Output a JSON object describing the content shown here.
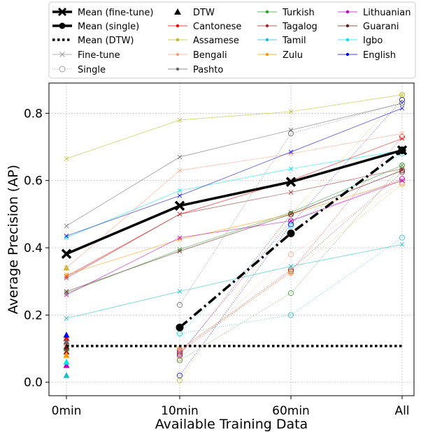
{
  "chart_data": {
    "type": "line",
    "title": "",
    "xlabel": "Available Training Data",
    "ylabel": "Average Precision (AP)",
    "categories": [
      "0min",
      "10min",
      "60min",
      "All"
    ],
    "y_ticks": [
      "0.0",
      "0.2",
      "0.4",
      "0.6",
      "0.8"
    ],
    "ylim": [
      -0.04,
      0.89
    ],
    "grid": true,
    "legend_position": "top, above plot",
    "legend_columns": [
      [
        "Mean (fine-tune)",
        "Mean (single)",
        "Mean (DTW)",
        "Fine-tune",
        "Single"
      ],
      [
        "DTW",
        "Cantonese",
        "Assamese",
        "Bengali",
        "Pashto"
      ],
      [
        "Turkish",
        "Tagalog",
        "Tamil",
        "Zulu"
      ],
      [
        "Lithuanian",
        "Guarani",
        "Igbo",
        "English"
      ]
    ],
    "legend_styles": {
      "Mean (fine-tune)": "thick-line-x-marker",
      "Mean (single)": "thick-dashdot-circle-marker",
      "Mean (DTW)": "dotted-line",
      "Fine-tune": "thin-grey-line-x-marker",
      "Single": "thin-grey-dotted-hollow-circle",
      "DTW": "triangle-marker"
    },
    "mean_series": [
      {
        "name": "Mean (fine-tune)",
        "x": [
          "0min",
          "10min",
          "60min",
          "All"
        ],
        "values": [
          0.382,
          0.525,
          0.596,
          0.69
        ],
        "color": "#000000"
      },
      {
        "name": "Mean (single)",
        "x": [
          "10min",
          "60min",
          "All"
        ],
        "values": [
          0.163,
          0.443,
          0.69
        ],
        "color": "#000000"
      },
      {
        "name": "Mean (DTW)",
        "x": [
          "0min",
          "All"
        ],
        "values": [
          0.108,
          0.108
        ],
        "color": "#000000"
      }
    ],
    "languages": [
      {
        "name": "Cantonese",
        "color": "#ff0000",
        "finetune": [
          0.315,
          0.5,
          0.6,
          0.725
        ],
        "single": [
          0.09,
          0.33,
          0.73
        ],
        "dtw": 0.13
      },
      {
        "name": "Assamese",
        "color": "#bcbd22",
        "finetune": [
          0.665,
          0.78,
          0.805,
          0.855
        ],
        "single": [
          0.005,
          0.5,
          0.855
        ],
        "dtw": 0.34
      },
      {
        "name": "Bengali",
        "color": "#ff9f80",
        "finetune": [
          0.34,
          0.63,
          0.68,
          0.74
        ],
        "single": [
          0.07,
          0.38,
          0.595
        ],
        "dtw": 0.115
      },
      {
        "name": "Pashto",
        "color": "#666666",
        "finetune": [
          0.465,
          0.67,
          0.75,
          0.83
        ],
        "single": [
          0.23,
          0.74,
          0.83
        ],
        "dtw": 0.12
      },
      {
        "name": "Turkish",
        "color": "#2ca02c",
        "finetune": [
          0.265,
          0.395,
          0.505,
          0.645
        ],
        "single": [
          0.065,
          0.265,
          0.645
        ],
        "dtw": 0.1
      },
      {
        "name": "Tagalog",
        "color": "#a52a2a",
        "finetune": [
          0.31,
          0.5,
          0.565,
          0.635
        ],
        "single": [
          0.095,
          0.335,
          0.625
        ],
        "dtw": 0.09
      },
      {
        "name": "Tamil",
        "color": "#17becf",
        "finetune": [
          0.19,
          0.27,
          0.345,
          0.41
        ],
        "single": [
          0.145,
          0.2,
          0.43
        ],
        "dtw": 0.02
      },
      {
        "name": "Zulu",
        "color": "#ff9900",
        "finetune": [
          0.32,
          0.425,
          0.5,
          0.6
        ],
        "single": [
          0.1,
          0.325,
          0.59
        ],
        "dtw": 0.08
      },
      {
        "name": "Lithuanian",
        "color": "#c000c0",
        "finetune": [
          0.26,
          0.43,
          0.48,
          0.6
        ],
        "single": [
          0.085,
          0.48,
          0.605
        ],
        "dtw": 0.05
      },
      {
        "name": "Guarani",
        "color": "#6b1a1a",
        "finetune": [
          0.27,
          0.39,
          0.5,
          0.63
        ],
        "single": [
          0.08,
          0.5,
          0.63
        ],
        "dtw": 0.105
      },
      {
        "name": "Igbo",
        "color": "#00e5ee",
        "finetune": [
          0.43,
          0.57,
          0.635,
          0.69
        ],
        "single": [
          0.145,
          0.465,
          0.68
        ],
        "dtw": 0.06
      },
      {
        "name": "English",
        "color": "#0000ee",
        "finetune": [
          0.435,
          0.555,
          0.685,
          0.815
        ],
        "single": [
          0.02,
          0.47,
          0.84
        ],
        "dtw": 0.14
      }
    ]
  }
}
